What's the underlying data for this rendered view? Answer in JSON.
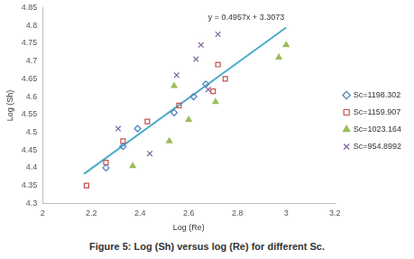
{
  "chart_data": {
    "type": "scatter",
    "caption": "Figure 5: Log (Sh) versus log (Re) for different Sc.",
    "x_label": "Log (Re)",
    "y_label": "Log (Sh)",
    "xlim": [
      2,
      3.2
    ],
    "xticks": [
      2,
      2.2,
      2.4,
      2.6,
      2.8,
      3,
      3.2
    ],
    "ylim": [
      4.3,
      4.85
    ],
    "yticks": [
      4.3,
      4.35,
      4.4,
      4.45,
      4.5,
      4.55,
      4.6,
      4.65,
      4.7,
      4.75,
      4.8,
      4.85
    ],
    "grid": false,
    "legend": "right",
    "series": [
      {
        "name": "Sc=1198.302",
        "color": "#4f81bd",
        "marker": "diamond",
        "x": [
          2.26,
          2.33,
          2.39,
          2.54,
          2.62,
          2.67
        ],
        "values": [
          4.4,
          4.46,
          4.51,
          4.555,
          4.6,
          4.635
        ]
      },
      {
        "name": "Sc=1159.907",
        "color": "#c0504d",
        "marker": "square",
        "x": [
          2.18,
          2.26,
          2.33,
          2.43,
          2.56,
          2.7,
          2.72,
          2.75
        ],
        "values": [
          4.35,
          4.415,
          4.475,
          4.53,
          4.575,
          4.615,
          4.69,
          4.65
        ]
      },
      {
        "name": "Sc=1023.164",
        "color": "#9bbb59",
        "marker": "triangle",
        "x": [
          2.37,
          2.52,
          2.54,
          2.6,
          2.71,
          2.97,
          3.0
        ],
        "values": [
          4.405,
          4.475,
          4.63,
          4.535,
          4.585,
          4.71,
          4.745
        ]
      },
      {
        "name": "Sc=954.8992",
        "color": "#8064a2",
        "marker": "x",
        "x": [
          2.31,
          2.44,
          2.55,
          2.63,
          2.65,
          2.68,
          2.72
        ],
        "values": [
          4.51,
          4.44,
          4.66,
          4.705,
          4.745,
          4.62,
          4.775
        ]
      }
    ],
    "trendline": {
      "label": "y = 0.4957x + 3.3073",
      "color": "#4bacc6",
      "x": [
        2.17,
        3.0
      ],
      "values": [
        4.383,
        4.794
      ]
    }
  }
}
